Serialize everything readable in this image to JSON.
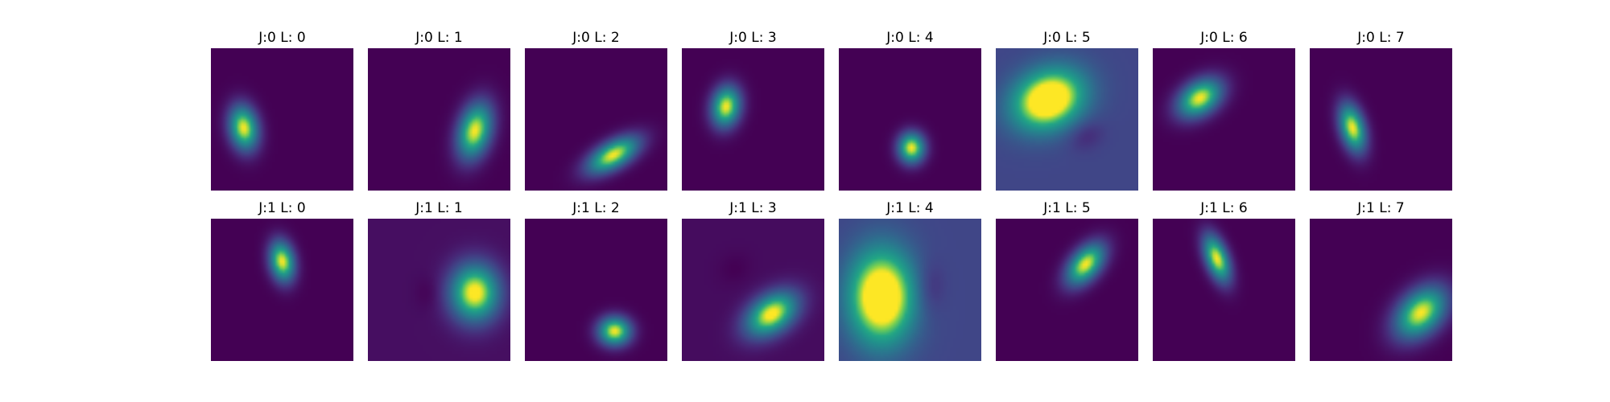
{
  "chart_data": {
    "type": "heatmap",
    "layout": {
      "rows": 2,
      "cols": 8
    },
    "colormap": "viridis",
    "panels": [
      {
        "title": "J:0 L: 0",
        "bg": 0.0,
        "blobs": [
          {
            "cx": 0.23,
            "cy": 0.56,
            "sx": 0.07,
            "sy": 0.11,
            "rot": -10,
            "amp": 1.0
          }
        ]
      },
      {
        "title": "J:0 L: 1",
        "bg": 0.0,
        "blobs": [
          {
            "cx": 0.75,
            "cy": 0.58,
            "sx": 0.08,
            "sy": 0.14,
            "rot": 15,
            "amp": 1.0
          }
        ]
      },
      {
        "title": "J:0 L: 2",
        "bg": 0.0,
        "blobs": [
          {
            "cx": 0.62,
            "cy": 0.75,
            "sx": 0.14,
            "sy": 0.065,
            "rot": -30,
            "amp": 1.0
          }
        ]
      },
      {
        "title": "J:0 L: 3",
        "bg": 0.0,
        "blobs": [
          {
            "cx": 0.31,
            "cy": 0.41,
            "sx": 0.07,
            "sy": 0.1,
            "rot": 10,
            "amp": 1.0
          }
        ]
      },
      {
        "title": "J:0 L: 4",
        "bg": 0.0,
        "blobs": [
          {
            "cx": 0.51,
            "cy": 0.7,
            "sx": 0.065,
            "sy": 0.075,
            "rot": 0,
            "amp": 1.0
          }
        ]
      },
      {
        "title": "J:0 L: 5",
        "bg": 0.26,
        "blobs": [
          {
            "cx": 0.37,
            "cy": 0.36,
            "sx": 0.18,
            "sy": 0.14,
            "rot": -25,
            "amp": 1.0
          },
          {
            "cx": 0.63,
            "cy": 0.61,
            "sx": 0.09,
            "sy": 0.07,
            "rot": -25,
            "amp": -0.12
          }
        ]
      },
      {
        "title": "J:0 L: 6",
        "bg": 0.0,
        "blobs": [
          {
            "cx": 0.33,
            "cy": 0.35,
            "sx": 0.12,
            "sy": 0.08,
            "rot": -35,
            "amp": 1.0
          }
        ]
      },
      {
        "title": "J:0 L: 7",
        "bg": 0.0,
        "blobs": [
          {
            "cx": 0.3,
            "cy": 0.56,
            "sx": 0.06,
            "sy": 0.12,
            "rot": -15,
            "amp": 1.0
          }
        ]
      },
      {
        "title": "J:1 L: 0",
        "bg": 0.0,
        "blobs": [
          {
            "cx": 0.5,
            "cy": 0.3,
            "sx": 0.06,
            "sy": 0.1,
            "rot": -10,
            "amp": 1.0
          }
        ]
      },
      {
        "title": "J:1 L: 1",
        "bg": 0.05,
        "blobs": [
          {
            "cx": 0.75,
            "cy": 0.52,
            "sx": 0.12,
            "sy": 0.14,
            "rot": 0,
            "amp": 1.0
          },
          {
            "cx": 0.42,
            "cy": 0.52,
            "sx": 0.06,
            "sy": 0.08,
            "rot": 0,
            "amp": -0.05
          }
        ]
      },
      {
        "title": "J:1 L: 2",
        "bg": 0.0,
        "blobs": [
          {
            "cx": 0.63,
            "cy": 0.79,
            "sx": 0.08,
            "sy": 0.07,
            "rot": 0,
            "amp": 1.0
          }
        ]
      },
      {
        "title": "J:1 L: 3",
        "bg": 0.04,
        "blobs": [
          {
            "cx": 0.63,
            "cy": 0.67,
            "sx": 0.14,
            "sy": 0.09,
            "rot": -35,
            "amp": 1.0
          },
          {
            "cx": 0.37,
            "cy": 0.35,
            "sx": 0.08,
            "sy": 0.07,
            "rot": -35,
            "amp": -0.04
          }
        ]
      },
      {
        "title": "J:1 L: 4",
        "bg": 0.26,
        "blobs": [
          {
            "cx": 0.3,
            "cy": 0.55,
            "sx": 0.16,
            "sy": 0.23,
            "rot": 0,
            "amp": 1.0
          },
          {
            "cx": 0.64,
            "cy": 0.48,
            "sx": 0.07,
            "sy": 0.13,
            "rot": 0,
            "amp": -0.12
          }
        ]
      },
      {
        "title": "J:1 L: 5",
        "bg": 0.0,
        "blobs": [
          {
            "cx": 0.63,
            "cy": 0.32,
            "sx": 0.12,
            "sy": 0.07,
            "rot": -50,
            "amp": 1.0
          }
        ]
      },
      {
        "title": "J:1 L: 6",
        "bg": 0.0,
        "blobs": [
          {
            "cx": 0.45,
            "cy": 0.28,
            "sx": 0.055,
            "sy": 0.12,
            "rot": -20,
            "amp": 1.0
          }
        ]
      },
      {
        "title": "J:1 L: 7",
        "bg": 0.0,
        "blobs": [
          {
            "cx": 0.78,
            "cy": 0.66,
            "sx": 0.15,
            "sy": 0.1,
            "rot": -45,
            "amp": 1.0
          }
        ]
      }
    ]
  }
}
